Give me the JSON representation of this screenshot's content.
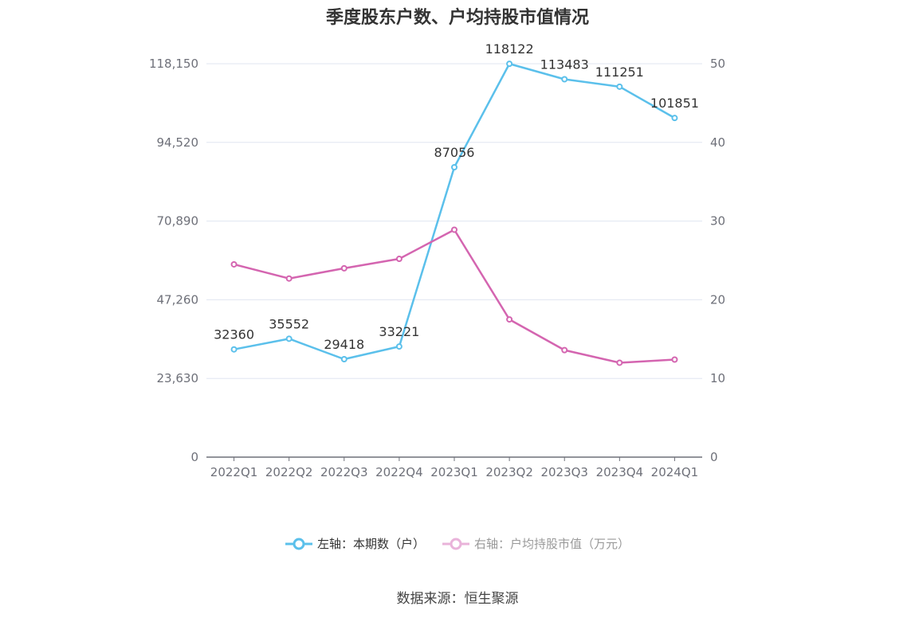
{
  "title": "季度股东户数、户均持股市值情况",
  "source": "数据来源：恒生聚源",
  "chart_data": {
    "type": "line",
    "categories": [
      "2022Q1",
      "2022Q2",
      "2022Q3",
      "2022Q4",
      "2023Q1",
      "2023Q2",
      "2023Q3",
      "2023Q4",
      "2024Q1"
    ],
    "y_left": {
      "ylim": [
        0,
        118150
      ],
      "ticks": [
        "0",
        "23,630",
        "47,260",
        "70,890",
        "94,520",
        "118,150"
      ]
    },
    "y_right": {
      "ylim": [
        0,
        50
      ],
      "ticks": [
        "0",
        "10",
        "20",
        "30",
        "40",
        "50"
      ]
    },
    "grid": true,
    "legend_position": "bottom",
    "series": [
      {
        "name": "左轴：本期数（户）",
        "axis": "left",
        "color": "#5bc0eb",
        "values": [
          32360,
          35552,
          29418,
          33221,
          87056,
          118122,
          113483,
          111251,
          101851
        ],
        "labels": [
          "32360",
          "35552",
          "29418",
          "33221",
          "87056",
          "118122",
          "113483",
          "111251",
          "101851"
        ]
      },
      {
        "name": "右轴：户均持股市值（万元）",
        "axis": "right",
        "color": "#d465b0",
        "values": [
          24.5,
          22.7,
          24.0,
          25.2,
          28.9,
          17.5,
          13.6,
          12.0,
          12.4
        ]
      }
    ]
  }
}
